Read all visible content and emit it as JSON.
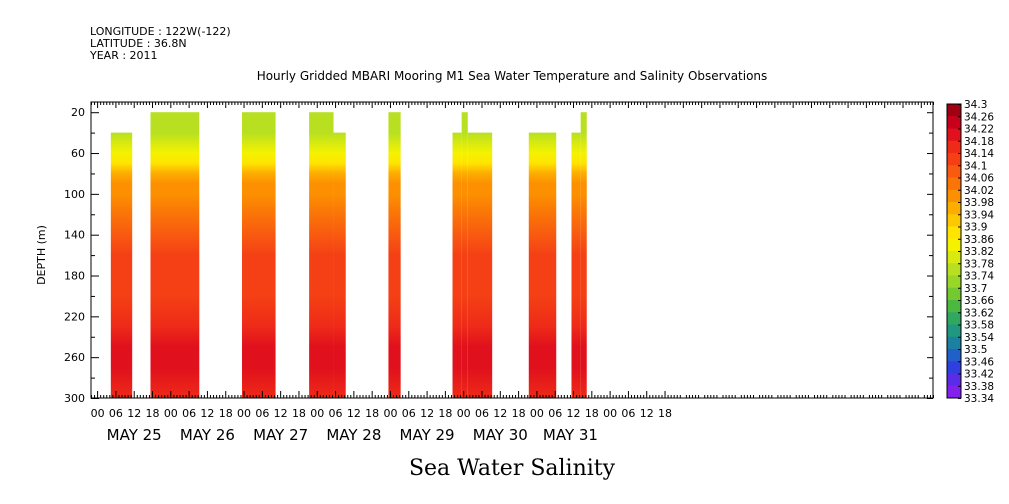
{
  "header": {
    "longitude": "LONGITUDE : 122W(-122)",
    "latitude": "LATITUDE : 36.8N",
    "year": "YEAR : 2011"
  },
  "chart_data": {
    "type": "heatmap",
    "title": "Hourly Gridded MBARI Mooring M1 Sea Water Temperature and Salinity Observations",
    "subtitle": "Sea Water Salinity",
    "ylabel": "DEPTH (m)",
    "xlabel": "",
    "y_axis": {
      "ylim": [
        300,
        10
      ],
      "inverted": true,
      "ticks": [
        20,
        60,
        100,
        140,
        180,
        220,
        260,
        300
      ]
    },
    "x_axis": {
      "units": "hours since May 24 22:00 2011",
      "xlim": [
        0,
        276
      ],
      "hour_ticks": [
        {
          "h": 2,
          "label": "00"
        },
        {
          "h": 8,
          "label": "06"
        },
        {
          "h": 14,
          "label": "12"
        },
        {
          "h": 20,
          "label": "18"
        },
        {
          "h": 26,
          "label": "00"
        },
        {
          "h": 32,
          "label": "06"
        },
        {
          "h": 38,
          "label": "12"
        },
        {
          "h": 44,
          "label": "18"
        },
        {
          "h": 50,
          "label": "00"
        },
        {
          "h": 56,
          "label": "06"
        },
        {
          "h": 62,
          "label": "12"
        },
        {
          "h": 68,
          "label": "18"
        },
        {
          "h": 74,
          "label": "00"
        },
        {
          "h": 80,
          "label": "06"
        },
        {
          "h": 86,
          "label": "12"
        },
        {
          "h": 92,
          "label": "18"
        },
        {
          "h": 98,
          "label": "00"
        },
        {
          "h": 104,
          "label": "06"
        },
        {
          "h": 110,
          "label": "12"
        },
        {
          "h": 116,
          "label": "18"
        },
        {
          "h": 122,
          "label": "00"
        },
        {
          "h": 128,
          "label": "06"
        },
        {
          "h": 134,
          "label": "12"
        },
        {
          "h": 140,
          "label": "18"
        },
        {
          "h": 146,
          "label": "00"
        },
        {
          "h": 152,
          "label": "06"
        },
        {
          "h": 158,
          "label": "12"
        },
        {
          "h": 164,
          "label": "18"
        },
        {
          "h": 170,
          "label": "00"
        },
        {
          "h": 176,
          "label": "06"
        },
        {
          "h": 182,
          "label": "12"
        },
        {
          "h": 188,
          "label": "18"
        }
      ],
      "day_labels": [
        {
          "h": 14,
          "label": "MAY 25"
        },
        {
          "h": 38,
          "label": "MAY 26"
        },
        {
          "h": 62,
          "label": "MAY 27"
        },
        {
          "h": 86,
          "label": "MAY 28"
        },
        {
          "h": 110,
          "label": "MAY 29"
        },
        {
          "h": 134,
          "label": "MAY 30"
        },
        {
          "h": 157,
          "label": "MAY 31"
        }
      ]
    },
    "data_blocks": [
      {
        "start_h": 6.5,
        "end_h": 13.5,
        "top_depth": 40
      },
      {
        "start_h": 19.5,
        "end_h": 35.5,
        "top_depth": 20
      },
      {
        "start_h": 49.5,
        "end_h": 60.5,
        "top_depth": 20
      },
      {
        "start_h": 71.5,
        "end_h": 79.5,
        "top_depth": 20
      },
      {
        "start_h": 79.5,
        "end_h": 83.5,
        "top_depth": 40
      },
      {
        "start_h": 97.5,
        "end_h": 101.5,
        "top_depth": 20
      },
      {
        "start_h": 118.5,
        "end_h": 121.5,
        "top_depth": 40
      },
      {
        "start_h": 121.5,
        "end_h": 123.5,
        "top_depth": 20
      },
      {
        "start_h": 123.5,
        "end_h": 131.5,
        "top_depth": 40
      },
      {
        "start_h": 143.5,
        "end_h": 152.5,
        "top_depth": 40
      },
      {
        "start_h": 157.5,
        "end_h": 160.5,
        "top_depth": 40
      },
      {
        "start_h": 160.5,
        "end_h": 162.5,
        "top_depth": 20
      }
    ],
    "typical_profile": [
      {
        "depth": 20,
        "value": 33.78
      },
      {
        "depth": 40,
        "value": 33.8
      },
      {
        "depth": 60,
        "value": 33.86
      },
      {
        "depth": 70,
        "value": 33.9
      },
      {
        "depth": 80,
        "value": 33.96
      },
      {
        "depth": 90,
        "value": 34.0
      },
      {
        "depth": 100,
        "value": 34.04
      },
      {
        "depth": 120,
        "value": 34.08
      },
      {
        "depth": 140,
        "value": 34.12
      },
      {
        "depth": 160,
        "value": 34.14
      },
      {
        "depth": 200,
        "value": 34.15
      },
      {
        "depth": 230,
        "value": 34.18
      },
      {
        "depth": 250,
        "value": 34.22
      },
      {
        "depth": 270,
        "value": 34.2
      },
      {
        "depth": 300,
        "value": 34.18
      }
    ],
    "colorbar": {
      "labels": [
        "34.3",
        "34.26",
        "34.22",
        "34.18",
        "34.14",
        "34.1",
        "34.06",
        "34.02",
        "33.98",
        "33.94",
        "33.9",
        "33.86",
        "33.82",
        "33.78",
        "33.74",
        "33.7",
        "33.66",
        "33.62",
        "33.58",
        "33.54",
        "33.5",
        "33.46",
        "33.42",
        "33.38",
        "33.34"
      ],
      "colors": [
        "#a00012",
        "#c8001c",
        "#e0101c",
        "#ee2a18",
        "#f44014",
        "#f85a10",
        "#fa7408",
        "#fc9000",
        "#fdac00",
        "#fec800",
        "#ffe400",
        "#f4f200",
        "#d8ea10",
        "#b8e020",
        "#98d628",
        "#74c830",
        "#4cb840",
        "#30a860",
        "#209880",
        "#1c80a0",
        "#2060c8",
        "#3040e0",
        "#5a2ce8",
        "#8420ec",
        "#b41cf0"
      ]
    }
  }
}
